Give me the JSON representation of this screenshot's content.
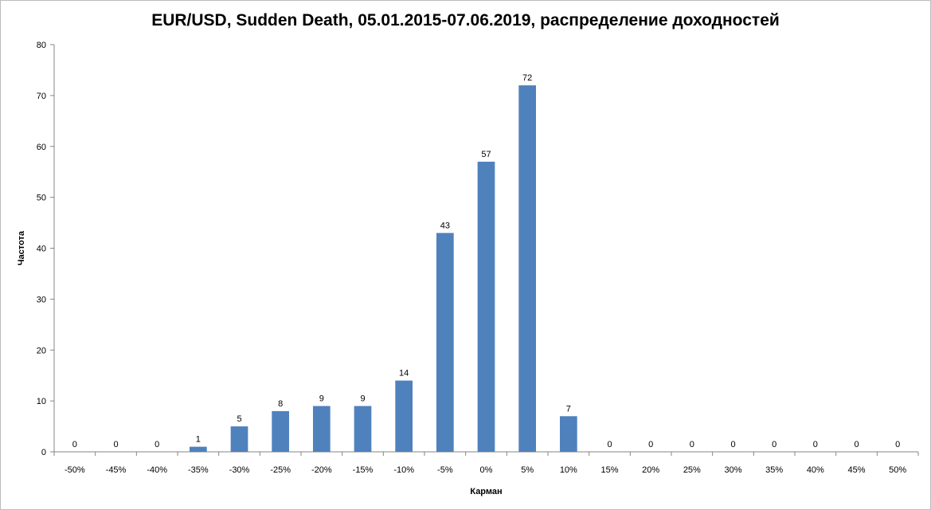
{
  "chart_data": {
    "type": "bar",
    "title": "EUR/USD, Sudden Death, 05.01.2015-07.06.2019,  распределение доходностей",
    "xlabel": "Карман",
    "ylabel": "Частота",
    "categories": [
      "-50%",
      "-45%",
      "-40%",
      "-35%",
      "-30%",
      "-25%",
      "-20%",
      "-15%",
      "-10%",
      "-5%",
      "0%",
      "5%",
      "10%",
      "15%",
      "20%",
      "25%",
      "30%",
      "35%",
      "40%",
      "45%",
      "50%"
    ],
    "values": [
      0,
      0,
      0,
      1,
      5,
      8,
      9,
      9,
      14,
      43,
      57,
      72,
      7,
      0,
      0,
      0,
      0,
      0,
      0,
      0,
      0
    ],
    "ylim": [
      0,
      80
    ],
    "yticks": [
      0,
      10,
      20,
      30,
      40,
      50,
      60,
      70,
      80
    ],
    "grid": false,
    "legend": "none",
    "bar_color": "#4f81bd",
    "data_labels": true
  }
}
